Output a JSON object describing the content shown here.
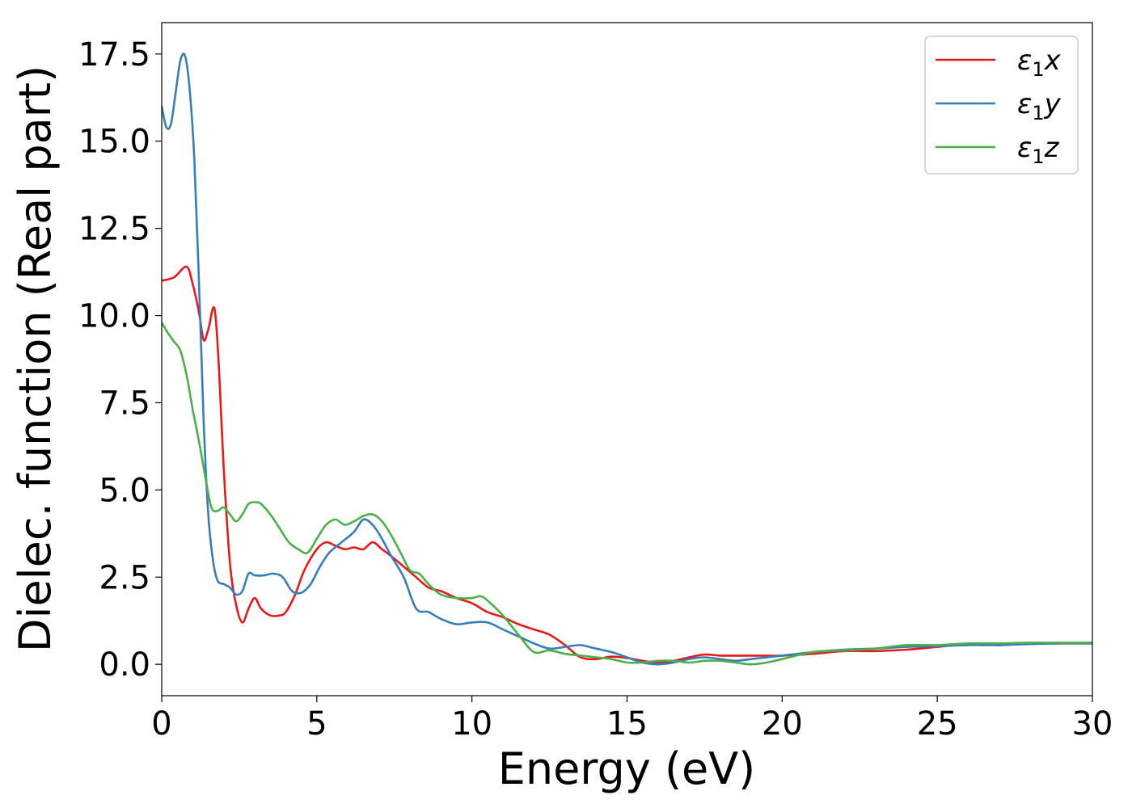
{
  "chart_data": {
    "type": "line",
    "title": "",
    "xlabel": "Energy (eV)",
    "ylabel": "Dielec. function (Real part)",
    "xlim": [
      0,
      30
    ],
    "ylim": [
      -0.9,
      18.4
    ],
    "xticks": [
      0,
      5,
      10,
      15,
      20,
      25,
      30
    ],
    "xtick_labels": [
      "0",
      "5",
      "10",
      "15",
      "20",
      "25",
      "30"
    ],
    "yticks": [
      0.0,
      2.5,
      5.0,
      7.5,
      10.0,
      12.5,
      15.0,
      17.5
    ],
    "ytick_labels": [
      "0.0",
      "2.5",
      "5.0",
      "7.5",
      "10.0",
      "12.5",
      "15.0",
      "17.5"
    ],
    "grid": false,
    "legend_position": "top-right",
    "series": [
      {
        "name": "ε1x",
        "legend_symbol": "ε",
        "legend_sub": "1",
        "legend_var": "x",
        "color": "#e41a1c",
        "x": [
          0,
          0.4,
          0.8,
          1.0,
          1.2,
          1.35,
          1.5,
          1.7,
          1.85,
          2.0,
          2.2,
          2.4,
          2.6,
          2.8,
          3.0,
          3.2,
          3.5,
          3.8,
          4.0,
          4.3,
          4.6,
          5.0,
          5.3,
          5.6,
          5.9,
          6.2,
          6.5,
          6.8,
          7.1,
          7.4,
          7.8,
          8.2,
          8.6,
          9.0,
          9.5,
          10.0,
          10.5,
          11.0,
          11.5,
          12.0,
          12.5,
          13.0,
          13.5,
          14.0,
          14.5,
          15.0,
          15.5,
          16.0,
          16.5,
          17.0,
          17.5,
          18.0,
          18.5,
          19.0,
          20.0,
          21.0,
          22.0,
          23.0,
          24.0,
          25.0,
          26.0,
          27.0,
          28.0,
          29.0,
          30.0
        ],
        "values": [
          11.0,
          11.1,
          11.4,
          10.9,
          10.1,
          9.3,
          9.6,
          10.2,
          8.4,
          5.6,
          2.9,
          1.7,
          1.2,
          1.6,
          1.9,
          1.6,
          1.4,
          1.4,
          1.5,
          2.0,
          2.7,
          3.3,
          3.5,
          3.4,
          3.3,
          3.35,
          3.3,
          3.5,
          3.3,
          3.1,
          2.8,
          2.5,
          2.2,
          2.1,
          1.9,
          1.75,
          1.5,
          1.35,
          1.15,
          1.0,
          0.85,
          0.55,
          0.2,
          0.15,
          0.22,
          0.18,
          0.1,
          0.05,
          0.1,
          0.2,
          0.28,
          0.25,
          0.25,
          0.25,
          0.25,
          0.3,
          0.38,
          0.38,
          0.42,
          0.5,
          0.58,
          0.55,
          0.6,
          0.6,
          0.6
        ]
      },
      {
        "name": "ε1y",
        "legend_symbol": "ε",
        "legend_sub": "1",
        "legend_var": "y",
        "color": "#377eb8",
        "x": [
          0,
          0.15,
          0.3,
          0.45,
          0.6,
          0.75,
          0.9,
          1.05,
          1.2,
          1.35,
          1.5,
          1.65,
          1.8,
          2.0,
          2.2,
          2.4,
          2.6,
          2.8,
          3.0,
          3.3,
          3.6,
          3.9,
          4.2,
          4.5,
          4.8,
          5.1,
          5.4,
          5.8,
          6.2,
          6.5,
          6.8,
          7.1,
          7.4,
          7.8,
          8.2,
          8.6,
          9.0,
          9.5,
          10.0,
          10.5,
          11.0,
          11.5,
          12.0,
          12.5,
          13.0,
          13.5,
          14.0,
          14.5,
          15.0,
          15.5,
          16.0,
          16.5,
          17.0,
          17.5,
          18.0,
          18.5,
          19.0,
          20.0,
          21.0,
          22.0,
          23.0,
          24.0,
          25.0,
          26.0,
          27.0,
          28.0,
          29.0,
          30.0
        ],
        "values": [
          16.0,
          15.4,
          15.5,
          16.4,
          17.3,
          17.45,
          16.5,
          14.5,
          11.0,
          7.0,
          4.3,
          3.0,
          2.4,
          2.3,
          2.2,
          2.0,
          2.1,
          2.6,
          2.55,
          2.55,
          2.6,
          2.5,
          2.1,
          2.05,
          2.3,
          2.8,
          3.2,
          3.5,
          3.8,
          4.15,
          4.0,
          3.6,
          3.1,
          2.5,
          1.6,
          1.5,
          1.3,
          1.15,
          1.2,
          1.2,
          1.0,
          0.8,
          0.6,
          0.45,
          0.5,
          0.55,
          0.45,
          0.35,
          0.2,
          0.05,
          0.0,
          0.05,
          0.15,
          0.2,
          0.15,
          0.1,
          0.15,
          0.25,
          0.35,
          0.42,
          0.45,
          0.5,
          0.52,
          0.55,
          0.55,
          0.58,
          0.6,
          0.6
        ]
      },
      {
        "name": "ε1z",
        "legend_symbol": "ε",
        "legend_sub": "1",
        "legend_var": "z",
        "color": "#4daf4a",
        "x": [
          0,
          0.2,
          0.4,
          0.6,
          0.8,
          1.0,
          1.2,
          1.4,
          1.6,
          1.8,
          2.0,
          2.2,
          2.4,
          2.6,
          2.8,
          3.0,
          3.2,
          3.5,
          3.8,
          4.1,
          4.4,
          4.7,
          5.0,
          5.3,
          5.6,
          5.9,
          6.2,
          6.5,
          6.8,
          7.1,
          7.4,
          7.7,
          8.0,
          8.3,
          8.6,
          9.0,
          9.5,
          10.0,
          10.3,
          10.6,
          11.0,
          11.5,
          12.0,
          12.5,
          13.0,
          13.5,
          14.0,
          14.5,
          15.0,
          15.5,
          16.0,
          16.5,
          17.0,
          17.5,
          18.0,
          18.5,
          19.0,
          19.5,
          20.0,
          21.0,
          22.0,
          23.0,
          24.0,
          25.0,
          26.0,
          27.0,
          28.0,
          29.0,
          30.0
        ],
        "values": [
          9.8,
          9.5,
          9.25,
          9.0,
          8.3,
          7.3,
          6.4,
          5.4,
          4.5,
          4.4,
          4.5,
          4.3,
          4.1,
          4.3,
          4.6,
          4.65,
          4.6,
          4.3,
          3.9,
          3.5,
          3.3,
          3.2,
          3.6,
          4.0,
          4.15,
          4.0,
          4.1,
          4.25,
          4.3,
          4.1,
          3.7,
          3.2,
          2.7,
          2.6,
          2.3,
          2.0,
          1.9,
          1.9,
          1.95,
          1.75,
          1.4,
          0.85,
          0.35,
          0.4,
          0.3,
          0.25,
          0.2,
          0.15,
          0.05,
          0.05,
          0.1,
          0.1,
          0.05,
          0.1,
          0.1,
          0.05,
          0.0,
          0.05,
          0.15,
          0.35,
          0.4,
          0.45,
          0.55,
          0.55,
          0.6,
          0.6,
          0.62,
          0.62,
          0.62
        ]
      }
    ]
  }
}
